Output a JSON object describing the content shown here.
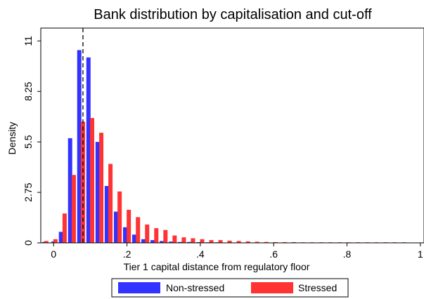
{
  "chart_data": {
    "type": "bar",
    "title": "Bank distribution by capitalisation and cut-off",
    "xlabel": "Tier 1 capital distance from regulatory floor",
    "ylabel": "Density",
    "xlim": [
      -0.035,
      1.01
    ],
    "ylim": [
      0,
      11.7
    ],
    "x_ticks": [
      0,
      0.2,
      0.4,
      0.6,
      0.8,
      1
    ],
    "x_tick_labels": [
      "0",
      ".2",
      ".4",
      ".6",
      ".8",
      "1"
    ],
    "y_ticks": [
      0,
      2.75,
      5.5,
      8.25,
      11
    ],
    "y_tick_labels": [
      "0",
      "2.75",
      "5.5",
      "8.25",
      "11"
    ],
    "cutoff_x": 0.08,
    "grid": false,
    "legend_position": "bottom",
    "series": [
      {
        "name": "Non-stressed",
        "color": "#3333ff",
        "x": [
          -0.025,
          0,
          0.02,
          0.045,
          0.07,
          0.095,
          0.12,
          0.145,
          0.17,
          0.195,
          0.22,
          0.245,
          0.27,
          0.295,
          0.32,
          0.345,
          0.37,
          0.395,
          0.42,
          0.445,
          0.47,
          0.495,
          0.52,
          0.545,
          0.57
        ],
        "values": [
          0.05,
          0.08,
          0.6,
          5.7,
          10.5,
          10.1,
          5.5,
          3.1,
          1.7,
          0.85,
          0.45,
          0.2,
          0.15,
          0.1,
          0.07,
          0.05,
          0.05,
          0.04,
          0.03,
          0.03,
          0.02,
          0.02,
          0.02,
          0.02,
          0.02
        ]
      },
      {
        "name": "Stressed",
        "color": "#ff3333",
        "x": [
          -0.02,
          0.005,
          0.03,
          0.055,
          0.08,
          0.105,
          0.13,
          0.155,
          0.18,
          0.205,
          0.23,
          0.255,
          0.28,
          0.305,
          0.33,
          0.355,
          0.38,
          0.405,
          0.43,
          0.455,
          0.48,
          0.505,
          0.53,
          0.555,
          0.58,
          0.605,
          0.63,
          0.655,
          0.68,
          0.705,
          0.73,
          0.755,
          0.78,
          0.805,
          0.83,
          0.855,
          0.88,
          0.905,
          0.93,
          0.955
        ],
        "values": [
          0.1,
          0.2,
          1.6,
          3.7,
          6.6,
          6.8,
          6.0,
          4.3,
          2.8,
          1.8,
          1.4,
          1.0,
          0.8,
          0.7,
          0.4,
          0.3,
          0.25,
          0.2,
          0.15,
          0.15,
          0.12,
          0.1,
          0.08,
          0.06,
          0.05,
          0.04,
          0.04,
          0.04,
          0.03,
          0.03,
          0.03,
          0.03,
          0.03,
          0.03,
          0.03,
          0.03,
          0.03,
          0.03,
          0.03,
          0.03
        ]
      }
    ]
  }
}
